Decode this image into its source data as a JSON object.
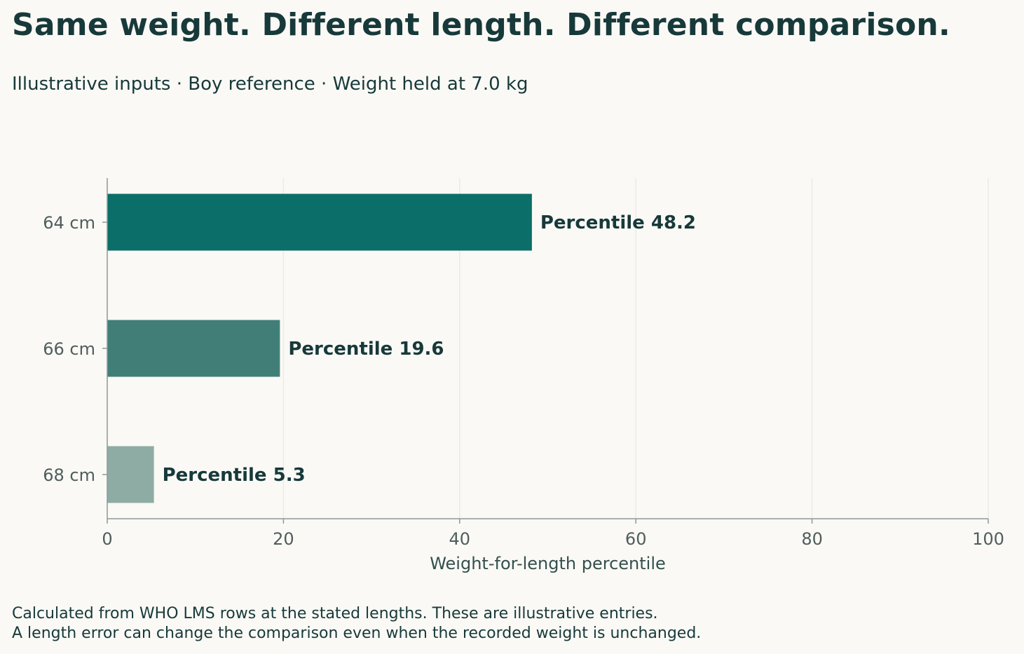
{
  "header": {
    "title": "Same weight. Different length. Different comparison.",
    "subtitle": "Illustrative inputs · Boy reference · Weight held at 7.0 kg"
  },
  "chart_data": {
    "type": "bar",
    "orientation": "horizontal",
    "categories": [
      "64 cm",
      "66 cm",
      "68 cm"
    ],
    "values": [
      48.2,
      19.6,
      5.3
    ],
    "data_labels": [
      "Percentile 48.2",
      "Percentile 19.6",
      "Percentile 5.3"
    ],
    "bar_colors": [
      "#0b6e69",
      "#427e78",
      "#8eaca4"
    ],
    "xlabel": "Weight-for-length percentile",
    "ylabel": "",
    "xlim": [
      0,
      100
    ],
    "xticks": [
      0,
      20,
      40,
      60,
      80,
      100
    ],
    "xtick_labels": [
      "0",
      "20",
      "40",
      "60",
      "80",
      "100"
    ],
    "grid": "vertical"
  },
  "footnote": {
    "line1": "Calculated from WHO LMS rows at the stated lengths. These are illustrative entries.",
    "line2": "A length error can change the comparison even when the recorded weight is unchanged."
  },
  "colors": {
    "background": "#faf9f5",
    "text": "#17393a",
    "axis": "#8a9a98",
    "tick_text": "#4f5e5c",
    "grid": "#ecebe5"
  }
}
